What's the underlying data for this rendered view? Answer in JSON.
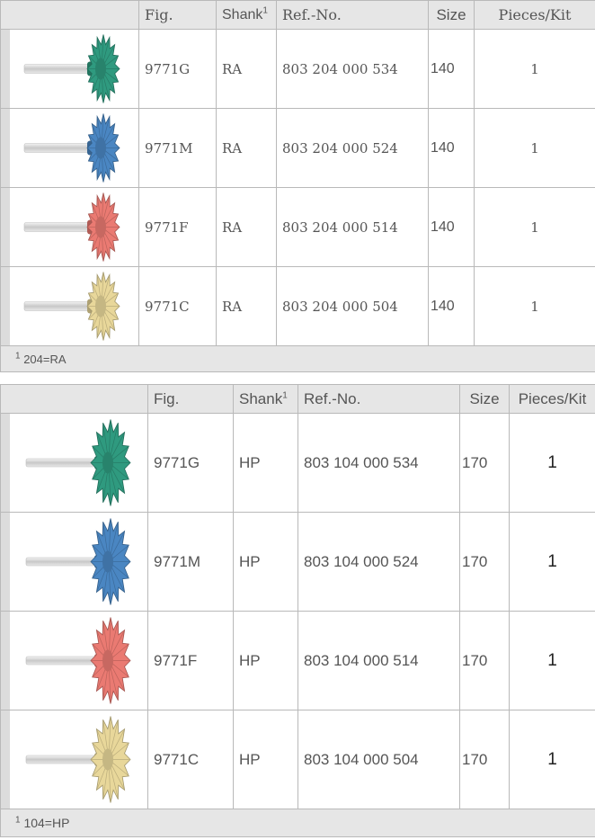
{
  "table1": {
    "headers": {
      "fig": "Fig.",
      "shank": "Shank",
      "shank_note": "1",
      "ref": "Ref.-No.",
      "size": "Size",
      "pieces": "Pieces/Kit"
    },
    "rows": [
      {
        "fig": "9771G",
        "shank": "RA",
        "ref": "803  204  000  534",
        "size": "140",
        "pieces": "1",
        "color": "#2f9a7f"
      },
      {
        "fig": "9771M",
        "shank": "RA",
        "ref": "803  204  000  524",
        "size": "140",
        "pieces": "1",
        "color": "#4a86c2"
      },
      {
        "fig": "9771F",
        "shank": "RA",
        "ref": "803  204  000  514",
        "size": "140",
        "pieces": "1",
        "color": "#ea7a72"
      },
      {
        "fig": "9771C",
        "shank": "RA",
        "ref": "803  204  000  504",
        "size": "140",
        "pieces": "1",
        "color": "#e8d79a"
      }
    ],
    "footnote_mark": "1",
    "footnote": "204=RA"
  },
  "table2": {
    "headers": {
      "fig": "Fig.",
      "shank": "Shank",
      "shank_note": "1",
      "ref": "Ref.-No.",
      "size": "Size",
      "pieces": "Pieces/Kit"
    },
    "rows": [
      {
        "fig": "9771G",
        "shank": "HP",
        "ref": "803  104  000 534",
        "size": "170",
        "pieces": "1",
        "color": "#2f9a7f"
      },
      {
        "fig": "9771M",
        "shank": "HP",
        "ref": "803  104  000 524",
        "size": "170",
        "pieces": "1",
        "color": "#4a86c2"
      },
      {
        "fig": "9771F",
        "shank": "HP",
        "ref": "803  104  000 514",
        "size": "170",
        "pieces": "1",
        "color": "#ea7a72"
      },
      {
        "fig": "9771C",
        "shank": "HP",
        "ref": "803  104  000 504",
        "size": "170",
        "pieces": "1",
        "color": "#e8d79a"
      }
    ],
    "footnote_mark": "1",
    "footnote": "104=HP"
  }
}
